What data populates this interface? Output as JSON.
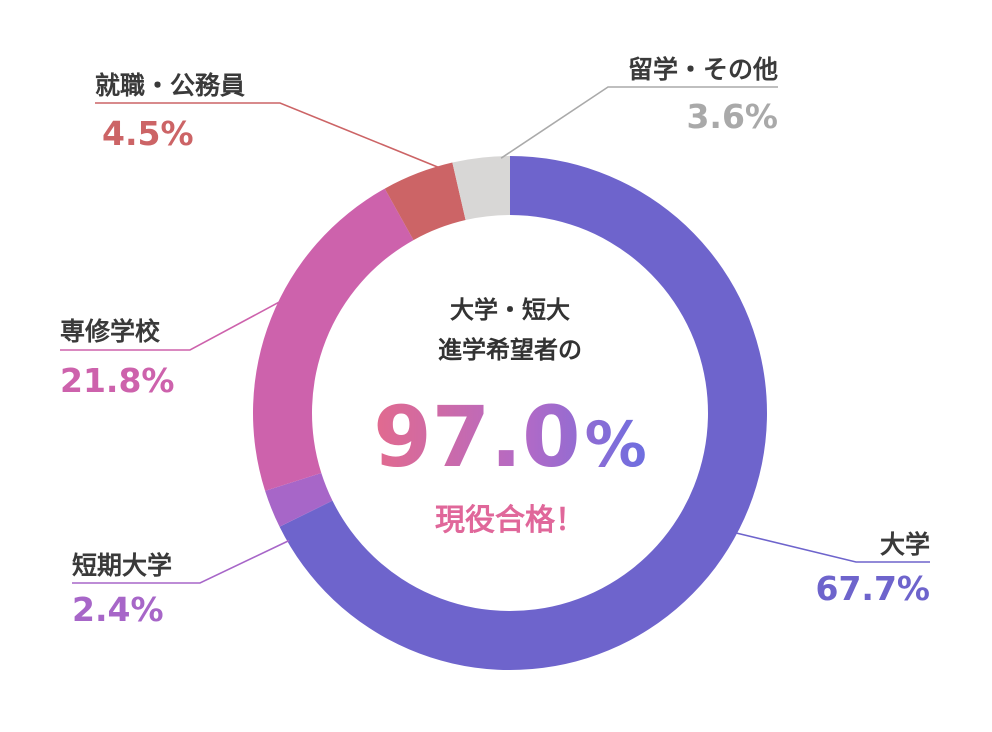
{
  "chart_data": {
    "type": "pie",
    "style": "donut",
    "categories": [
      "大学",
      "短期大学",
      "専修学校",
      "就職・公務員",
      "留学・その他"
    ],
    "values": [
      67.7,
      2.4,
      21.8,
      4.5,
      3.6
    ],
    "labels": [
      "67.7%",
      "2.4%",
      "21.8%",
      "4.5%",
      "3.6%"
    ],
    "colors": [
      "#6e64cc",
      "#a766c8",
      "#cd62ac",
      "#cc6466",
      "#d8d7d6"
    ],
    "center": {
      "line1": "大学・短大",
      "line2": "進学希望者の",
      "value": "97.0",
      "unit": "%",
      "sub": "現役合格！"
    },
    "legend": "callout labels around the ring",
    "grid": false
  }
}
